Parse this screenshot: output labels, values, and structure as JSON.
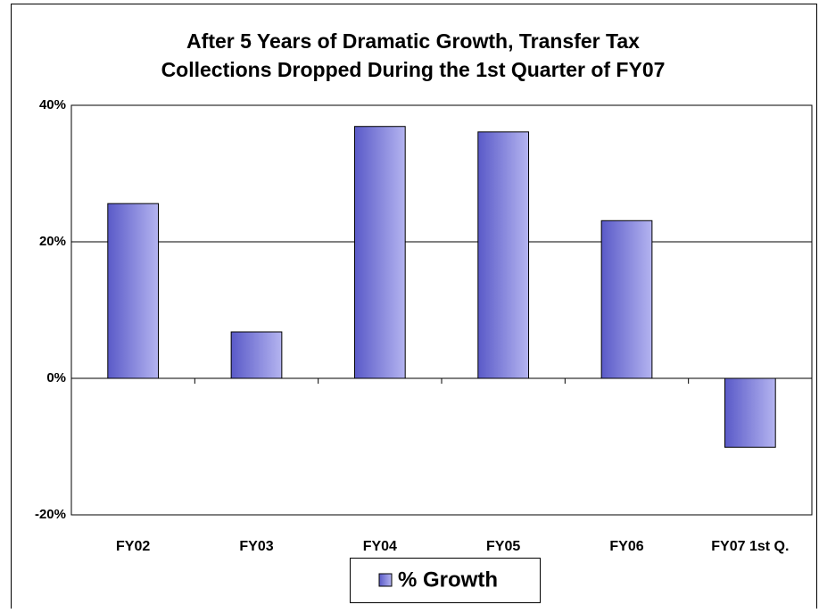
{
  "chart_data": {
    "type": "bar",
    "title": "After 5 Years of Dramatic Growth, Transfer Tax\nCollections Dropped During the 1st Quarter of FY07",
    "categories": [
      "FY02",
      "FY03",
      "FY04",
      "FY05",
      "FY06",
      "FY07 1st Q."
    ],
    "series": [
      {
        "name": "% Growth",
        "color": "#7070d8",
        "values": [
          25.6,
          6.8,
          36.9,
          36.1,
          23.1,
          -10.1
        ]
      }
    ],
    "ylim": [
      -20,
      40
    ],
    "yticks": [
      {
        "value": -20,
        "label": "-20%"
      },
      {
        "value": 0,
        "label": "0%"
      },
      {
        "value": 20,
        "label": "20%"
      },
      {
        "value": 40,
        "label": "40%"
      }
    ],
    "grid": true,
    "legend": "bottom"
  }
}
